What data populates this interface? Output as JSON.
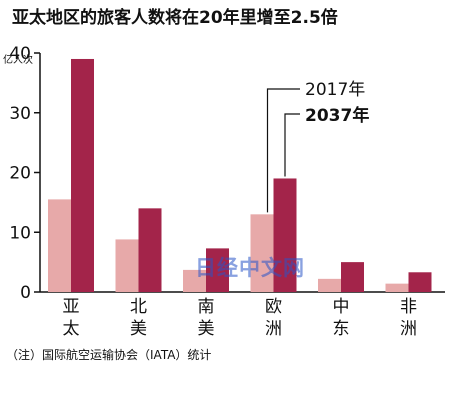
{
  "chart_data": {
    "type": "bar",
    "title": "亚太地区的旅客人数将在20年里增至2.5倍",
    "ylabel": "亿人次",
    "ylim": [
      0,
      40
    ],
    "yticks": [
      0,
      10,
      20,
      30,
      40
    ],
    "grid": false,
    "legend_position": "upper-right, with leader lines to 欧洲 bars",
    "categories": [
      {
        "line1": "亚",
        "line2": "太"
      },
      {
        "line1": "北",
        "line2": "美"
      },
      {
        "line1": "南",
        "line2": "美"
      },
      {
        "line1": "欧",
        "line2": "洲"
      },
      {
        "line1": "中",
        "line2": "东"
      },
      {
        "line1": "非",
        "line2": "洲"
      }
    ],
    "series": [
      {
        "name": "2017年",
        "color": "#e7a9a9",
        "values": [
          15.5,
          8.8,
          3.7,
          13.0,
          2.2,
          1.4
        ]
      },
      {
        "name": "2037年",
        "color": "#a3244a",
        "values": [
          39.0,
          14.0,
          7.3,
          19.0,
          5.0,
          3.3
        ]
      }
    ],
    "note": "（注）国际航空运输协会（IATA）统计",
    "watermark": "日经中文网"
  }
}
